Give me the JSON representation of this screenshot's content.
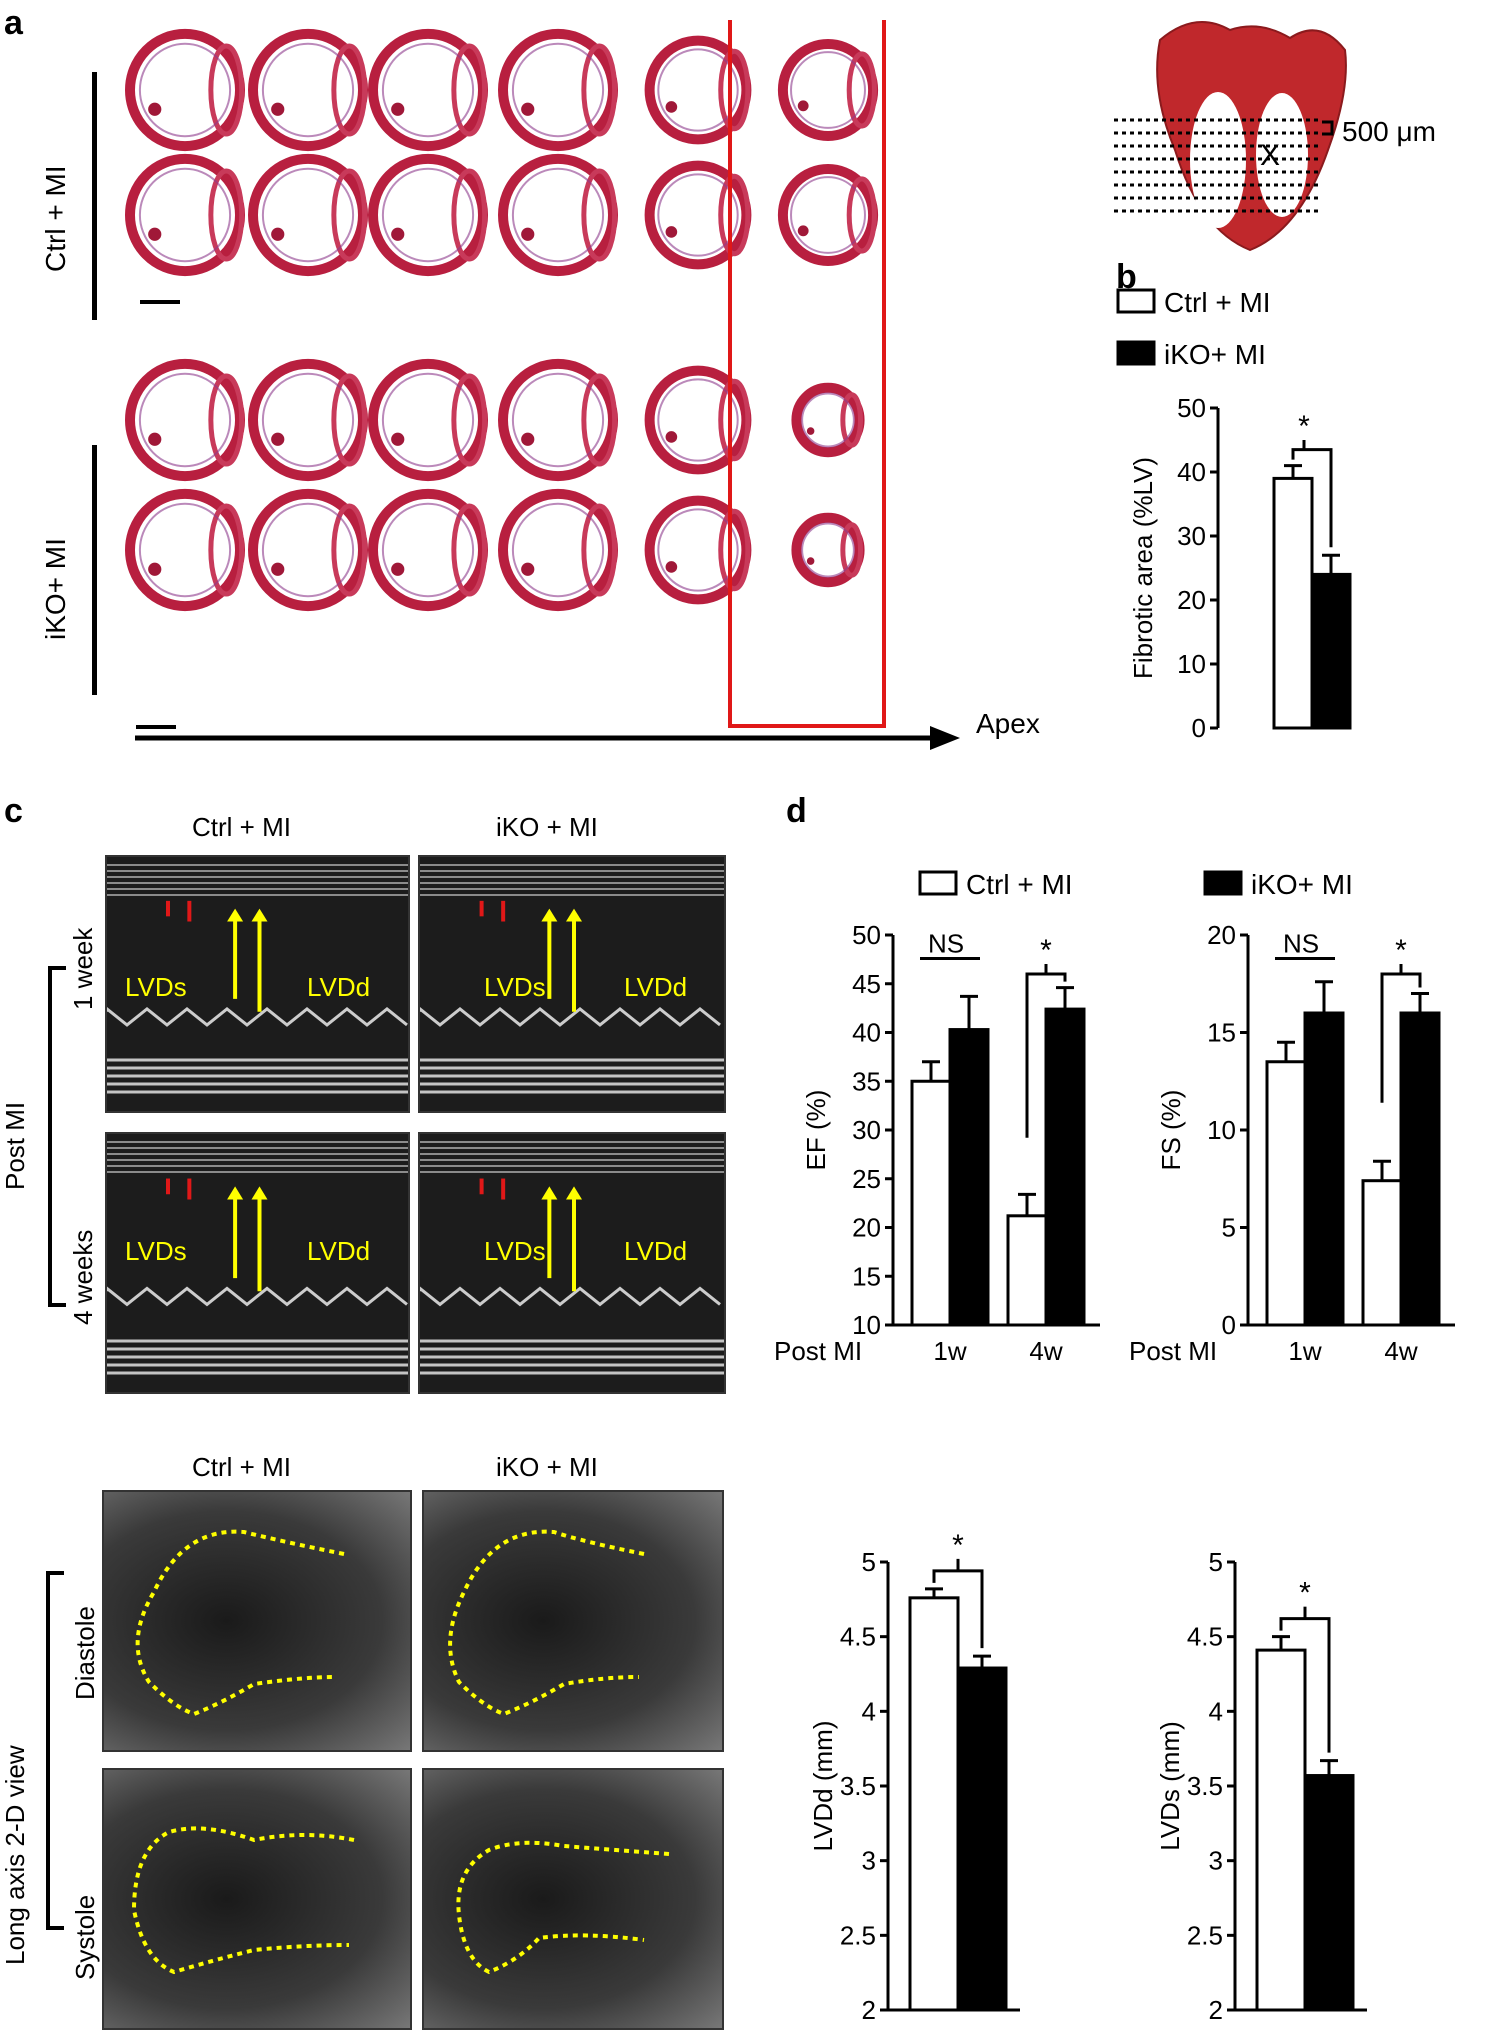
{
  "panel_labels": {
    "a": "a",
    "b": "b",
    "c": "c",
    "d": "d"
  },
  "panel_a": {
    "row_group_labels": [
      "Ctrl + MI",
      "iKO+ MI"
    ],
    "axis_label": "Apex",
    "diagram_scale": "500 μm",
    "diagram_marker": "X"
  },
  "panel_c": {
    "column_labels": [
      "Ctrl + MI",
      "iKO + MI"
    ],
    "row_labels": [
      "1 week",
      "4 weeks"
    ],
    "group_label": "Post MI",
    "lvds_label": "LVDs",
    "lvdd_label": "LVDd",
    "bottom_column_labels": [
      "Ctrl + MI",
      "iKO + MI"
    ],
    "bottom_group_label": "Long axis 2-D view",
    "bottom_row_labels": [
      "Diastole",
      "Systole"
    ]
  },
  "colors": {
    "white_bar": "#ffffff",
    "black_bar": "#000000",
    "red": "#e01818",
    "yellow": "#ffff00",
    "tissue": "#b81f3f"
  },
  "chart_data": [
    {
      "id": "fibrotic",
      "type": "bar",
      "title": "",
      "ylabel": "Fibrotic area (%LV)",
      "ylim": [
        0,
        50
      ],
      "yticks": [
        "0",
        "10",
        "20",
        "30",
        "40",
        "50"
      ],
      "legend": [
        "Ctrl + MI",
        "iKO+ MI"
      ],
      "series": [
        {
          "name": "Ctrl + MI",
          "values": [
            39
          ]
        },
        {
          "name": "iKO+ MI",
          "values": [
            24
          ]
        }
      ],
      "errors": [
        2,
        3
      ],
      "significance": "*"
    },
    {
      "id": "ef",
      "type": "bar",
      "ylabel": "EF (%)",
      "xlabel": "Post MI",
      "categories": [
        "1w",
        "4w"
      ],
      "ylim": [
        10,
        50
      ],
      "yticks": [
        "10",
        "15",
        "20",
        "25",
        "30",
        "35",
        "40",
        "45",
        "50"
      ],
      "legend": [
        "Ctrl + MI"
      ],
      "series": [
        {
          "name": "Ctrl + MI",
          "values": [
            35,
            21.2
          ]
        },
        {
          "name": "iKO+ MI",
          "values": [
            40.3,
            42.4
          ]
        }
      ],
      "errors": [
        [
          2,
          2.2
        ],
        [
          3.4,
          2.2
        ]
      ],
      "annotations": [
        "NS",
        "*"
      ]
    },
    {
      "id": "fs",
      "type": "bar",
      "ylabel": "FS (%)",
      "xlabel": "Post MI",
      "categories": [
        "1w",
        "4w"
      ],
      "ylim": [
        0,
        20
      ],
      "yticks": [
        "0",
        "5",
        "10",
        "15",
        "20"
      ],
      "legend": [
        "iKO+ MI"
      ],
      "series": [
        {
          "name": "Ctrl + MI",
          "values": [
            13.5,
            7.4
          ]
        },
        {
          "name": "iKO+ MI",
          "values": [
            16,
            16
          ]
        }
      ],
      "errors": [
        [
          1,
          1
        ],
        [
          1.6,
          1
        ]
      ],
      "annotations": [
        "NS",
        "*"
      ]
    },
    {
      "id": "lvdd",
      "type": "bar",
      "ylabel": "LVDd (mm)",
      "ylim": [
        2,
        5
      ],
      "yticks": [
        "2",
        "2.5",
        "3",
        "3.5",
        "4",
        "4.5",
        "5"
      ],
      "series": [
        {
          "name": "Ctrl + MI",
          "values": [
            4.76
          ]
        },
        {
          "name": "iKO+ MI",
          "values": [
            4.29
          ]
        }
      ],
      "errors": [
        0.06,
        0.08
      ],
      "significance": "*"
    },
    {
      "id": "lvds",
      "type": "bar",
      "ylabel": "LVDs (mm)",
      "ylim": [
        2,
        5
      ],
      "yticks": [
        "2",
        "2.5",
        "3",
        "3.5",
        "4",
        "4.5",
        "5"
      ],
      "series": [
        {
          "name": "Ctrl + MI",
          "values": [
            4.41
          ]
        },
        {
          "name": "iKO+ MI",
          "values": [
            3.57
          ]
        }
      ],
      "errors": [
        0.09,
        0.1
      ],
      "significance": "*"
    }
  ]
}
